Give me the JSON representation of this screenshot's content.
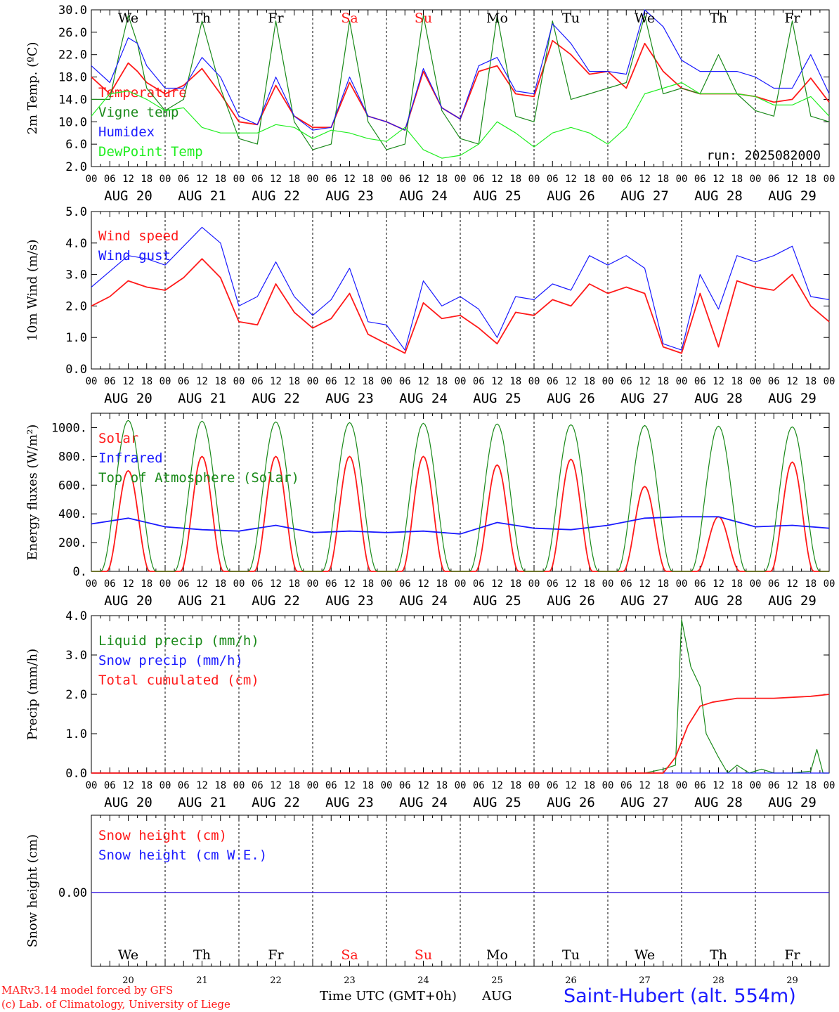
{
  "colors": {
    "red": "#ff1a1a",
    "green": "#1a8a1a",
    "blue": "#1a1aff",
    "light_green": "#22ee22",
    "black": "#000000"
  },
  "hour_ticks": [
    "00",
    "06",
    "12",
    "18"
  ],
  "day_dates": [
    "AUG 20",
    "AUG 21",
    "AUG 22",
    "AUG 23",
    "AUG 24",
    "AUG 25",
    "AUG 26",
    "AUG 27",
    "AUG 28",
    "AUG 29"
  ],
  "weekdays": [
    {
      "label": "We",
      "weekend": false
    },
    {
      "label": "Th",
      "weekend": false
    },
    {
      "label": "Fr",
      "weekend": false
    },
    {
      "label": "Sa",
      "weekend": true
    },
    {
      "label": "Su",
      "weekend": true
    },
    {
      "label": "Mo",
      "weekend": false
    },
    {
      "label": "Tu",
      "weekend": false
    },
    {
      "label": "We",
      "weekend": false
    },
    {
      "label": "Th",
      "weekend": false
    },
    {
      "label": "Fr",
      "weekend": false
    }
  ],
  "day_numbers": [
    "20",
    "21",
    "22",
    "23",
    "24",
    "25",
    "26",
    "27",
    "28",
    "29"
  ],
  "chart_data": [
    {
      "type": "line",
      "ylabel": "2m Temp. (ºC)",
      "ylim": [
        2,
        30
      ],
      "y_ticks": [
        "30.0",
        "26.0",
        "22.0",
        "18.0",
        "14.0",
        "10.0",
        "6.0",
        "2.0"
      ],
      "y_tick_values": [
        30,
        26,
        22,
        18,
        14,
        10,
        6,
        2
      ],
      "annotation": "run: 2025082000",
      "legend_placement": "top-left",
      "x_unit": "hours since AUG 20 00 UTC",
      "series": [
        {
          "name": "Temperature",
          "color": "#ff1a1a",
          "x": [
            0,
            6,
            12,
            15,
            18,
            24,
            30,
            36,
            42,
            48,
            54,
            60,
            66,
            72,
            78,
            84,
            90,
            96,
            102,
            108,
            114,
            120,
            126,
            132,
            138,
            144,
            150,
            156,
            162,
            168,
            174,
            180,
            186,
            192,
            198,
            204,
            210,
            216,
            222,
            228,
            234,
            240
          ],
          "values": [
            18,
            15,
            20.5,
            19,
            17,
            15,
            16.5,
            19.5,
            15,
            10,
            9.5,
            16.5,
            11,
            9,
            9,
            17,
            11,
            10,
            8.5,
            19,
            12.5,
            10.5,
            19,
            20,
            15,
            14.5,
            24.5,
            22,
            18.5,
            19,
            16,
            24,
            19,
            16,
            15,
            15,
            15,
            14.5,
            13.5,
            14,
            17.8,
            13.5
          ]
        },
        {
          "name": "Vigne temp",
          "color": "#1a8a1a",
          "x": [
            0,
            6,
            9,
            12,
            15,
            18,
            24,
            30,
            36,
            42,
            48,
            54,
            60,
            66,
            72,
            78,
            84,
            90,
            96,
            102,
            108,
            114,
            120,
            126,
            132,
            138,
            144,
            150,
            156,
            162,
            168,
            174,
            180,
            186,
            192,
            198,
            204,
            210,
            216,
            222,
            228,
            234,
            240
          ],
          "values": [
            14,
            14,
            22,
            29,
            24,
            16,
            12,
            14,
            28,
            16,
            7,
            6,
            28,
            10,
            5,
            6,
            28,
            10,
            5,
            6,
            29,
            12,
            7,
            6,
            29,
            11,
            10,
            28,
            14,
            15,
            16,
            17,
            29,
            15,
            16,
            15,
            22,
            15,
            12,
            11,
            28,
            11,
            10
          ]
        },
        {
          "name": "Humidex",
          "color": "#1a1aff",
          "x": [
            0,
            6,
            12,
            15,
            18,
            24,
            30,
            36,
            42,
            48,
            54,
            60,
            66,
            72,
            78,
            84,
            90,
            96,
            102,
            108,
            114,
            120,
            126,
            132,
            138,
            144,
            150,
            156,
            162,
            168,
            174,
            180,
            186,
            192,
            198,
            204,
            210,
            216,
            222,
            228,
            234,
            240
          ],
          "values": [
            20,
            17,
            25,
            24,
            20,
            16,
            16,
            21.5,
            18,
            11,
            9.5,
            18,
            11,
            8.5,
            9,
            18,
            11,
            10,
            8.5,
            19.5,
            12.5,
            10.5,
            20,
            21.5,
            15.5,
            15,
            27.5,
            24,
            19,
            19,
            18.5,
            30,
            27,
            21,
            19,
            19,
            19,
            18,
            16,
            16,
            22,
            15
          ]
        },
        {
          "name": "DewPoint Temp",
          "color": "#22ee22",
          "x": [
            0,
            6,
            12,
            18,
            24,
            30,
            36,
            42,
            48,
            54,
            60,
            66,
            72,
            78,
            84,
            90,
            96,
            102,
            108,
            114,
            120,
            126,
            132,
            138,
            144,
            150,
            156,
            162,
            168,
            174,
            180,
            186,
            192,
            198,
            204,
            210,
            216,
            222,
            228,
            234,
            240
          ],
          "values": [
            11,
            15,
            15.5,
            14,
            12,
            12.5,
            9,
            8,
            8,
            8,
            9.5,
            9,
            7,
            8.5,
            8,
            7,
            6.5,
            9,
            5,
            3.5,
            4,
            6,
            10,
            8,
            5.5,
            8,
            9,
            8,
            6,
            9,
            15,
            16,
            17,
            15,
            15,
            15,
            14.5,
            13,
            13,
            14.5,
            11
          ]
        }
      ]
    },
    {
      "type": "line",
      "ylabel": "10m Wind (m/s)",
      "ylim": [
        0,
        5
      ],
      "y_ticks": [
        "5.0",
        "4.0",
        "3.0",
        "2.0",
        "1.0",
        "0.0"
      ],
      "y_tick_values": [
        5,
        4,
        3,
        2,
        1,
        0
      ],
      "legend_placement": "top-left",
      "series": [
        {
          "name": "Wind speed",
          "color": "#ff1a1a",
          "x": [
            0,
            6,
            12,
            18,
            24,
            30,
            36,
            42,
            48,
            54,
            60,
            66,
            72,
            78,
            84,
            90,
            96,
            102,
            108,
            114,
            120,
            126,
            132,
            138,
            144,
            150,
            156,
            162,
            168,
            174,
            180,
            186,
            192,
            198,
            204,
            210,
            216,
            222,
            228,
            234,
            240
          ],
          "values": [
            2.0,
            2.3,
            2.8,
            2.6,
            2.5,
            2.9,
            3.5,
            2.9,
            1.5,
            1.4,
            2.7,
            1.8,
            1.3,
            1.6,
            2.4,
            1.1,
            0.8,
            0.5,
            2.1,
            1.6,
            1.7,
            1.3,
            0.8,
            1.8,
            1.7,
            2.2,
            2.0,
            2.7,
            2.4,
            2.6,
            2.4,
            0.7,
            0.5,
            2.4,
            0.7,
            2.8,
            2.6,
            2.5,
            3.0,
            2.0,
            1.5
          ]
        },
        {
          "name": "Wind gust",
          "color": "#1a1aff",
          "x": [
            0,
            6,
            12,
            18,
            24,
            30,
            36,
            42,
            48,
            54,
            60,
            66,
            72,
            78,
            84,
            90,
            96,
            102,
            108,
            114,
            120,
            126,
            132,
            138,
            144,
            150,
            156,
            162,
            168,
            174,
            180,
            186,
            192,
            198,
            204,
            210,
            216,
            222,
            228,
            234,
            240
          ],
          "values": [
            2.6,
            3.1,
            3.6,
            3.5,
            3.3,
            3.9,
            4.5,
            4.0,
            2.0,
            2.3,
            3.4,
            2.3,
            1.7,
            2.2,
            3.2,
            1.5,
            1.4,
            0.6,
            2.8,
            2.0,
            2.3,
            1.9,
            1.0,
            2.3,
            2.2,
            2.7,
            2.5,
            3.6,
            3.3,
            3.6,
            3.2,
            0.8,
            0.6,
            3.0,
            1.9,
            3.6,
            3.4,
            3.6,
            3.9,
            2.3,
            2.2
          ]
        }
      ]
    },
    {
      "type": "line",
      "ylabel": "Energy fluxes (W/m²)",
      "ylim": [
        0,
        1100
      ],
      "y_ticks": [
        "1000.",
        "800.",
        "600.",
        "400.",
        "200.",
        "0."
      ],
      "y_tick_values": [
        1000,
        800,
        600,
        400,
        200,
        0
      ],
      "legend_placement": "top-left",
      "series": [
        {
          "name": "Solar",
          "color": "#ff1a1a",
          "peak_hour": [
            12,
            12,
            12,
            12,
            12,
            12,
            12,
            12,
            12,
            12
          ],
          "values": [
            700,
            800,
            800,
            800,
            800,
            740,
            780,
            590,
            380,
            760
          ]
        },
        {
          "name": "Infrared",
          "color": "#1a1aff",
          "x": [
            0,
            12,
            24,
            36,
            48,
            60,
            72,
            84,
            96,
            108,
            120,
            132,
            144,
            156,
            168,
            180,
            192,
            204,
            216,
            228,
            240
          ],
          "values": [
            330,
            370,
            310,
            290,
            280,
            320,
            270,
            280,
            270,
            280,
            260,
            340,
            300,
            290,
            320,
            370,
            380,
            380,
            310,
            320,
            300
          ]
        },
        {
          "name": "Top of Atmosphere (Solar)",
          "color": "#1a8a1a",
          "peak_hour": [
            12,
            12,
            12,
            12,
            12,
            12,
            12,
            12,
            12,
            12
          ],
          "values": [
            1050,
            1045,
            1040,
            1035,
            1030,
            1025,
            1020,
            1015,
            1010,
            1005
          ]
        }
      ]
    },
    {
      "type": "line",
      "ylabel": "Precip (mm/h)",
      "ylim": [
        0,
        4
      ],
      "y_ticks": [
        "4.0",
        "3.0",
        "2.0",
        "1.0",
        "0.0"
      ],
      "y_tick_values": [
        4,
        3,
        2,
        1,
        0
      ],
      "legend_placement": "top-left",
      "series": [
        {
          "name": "Liquid precip (mm/h)",
          "color": "#1a8a1a",
          "x": [
            0,
            180,
            186,
            190,
            192,
            195,
            198,
            200,
            204,
            207,
            210,
            214,
            218,
            222,
            228,
            234,
            236,
            238,
            240
          ],
          "values": [
            0,
            0,
            0.1,
            0.2,
            3.9,
            2.7,
            2.2,
            1.0,
            0.4,
            0,
            0.2,
            0,
            0.1,
            0,
            0,
            0.05,
            0.6,
            0,
            0
          ]
        },
        {
          "name": "Snow precip (mm/h)",
          "color": "#1a1aff",
          "x": [
            0,
            240
          ],
          "values": [
            0,
            0
          ]
        },
        {
          "name": "Total cumulated (cm)",
          "color": "#ff1a1a",
          "x": [
            0,
            186,
            190,
            194,
            198,
            202,
            210,
            222,
            234,
            240
          ],
          "values": [
            0,
            0,
            0.4,
            1.2,
            1.7,
            1.8,
            1.9,
            1.9,
            1.95,
            2.0
          ]
        }
      ]
    },
    {
      "type": "line",
      "ylabel": "Snow height (cm)",
      "y_ticks": [
        "0.00"
      ],
      "y_tick_values": [
        0
      ],
      "legend_placement": "top-left",
      "series": [
        {
          "name": "Snow height (cm)",
          "color": "#ff1a1a",
          "x": [
            0,
            240
          ],
          "values": [
            0,
            0
          ]
        },
        {
          "name": "Snow height (cm W.E.)",
          "color": "#1a1aff",
          "x": [
            0,
            240
          ],
          "values": [
            0,
            0
          ]
        }
      ]
    }
  ],
  "footer": {
    "credit_line1": "MARv3.14 model forced by GFS",
    "credit_line2": "(c) Lab. of Climatology, University of Liege",
    "xlabel": "Time UTC (GMT+0h)",
    "month": "AUG",
    "station": "Saint-Hubert (alt. 554m)"
  }
}
